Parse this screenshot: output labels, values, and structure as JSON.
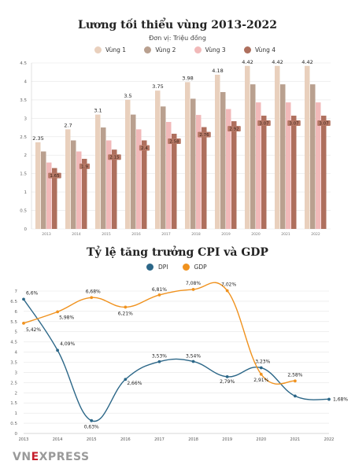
{
  "chart1": {
    "title": "Lương tối thiểu vùng 2013-2022",
    "subtitle": "Đơn vị: Triệu đồng"
  },
  "chart2": {
    "title": "Tỷ lệ tăng trưởng CPI và GDP"
  },
  "logo": {
    "prefix": "VN",
    "e": "E",
    "suffix": "XPRESS"
  },
  "chart_data": [
    {
      "type": "bar",
      "title": "Lương tối thiểu vùng 2013-2022",
      "subtitle": "Đơn vị: Triệu đồng",
      "categories": [
        "2013",
        "2014",
        "2015",
        "2016",
        "2017",
        "2018",
        "2019",
        "2020",
        "2021",
        "2022"
      ],
      "series": [
        {
          "name": "Vùng 1",
          "color": "#e9d0bd",
          "values": [
            2.35,
            2.7,
            3.1,
            3.5,
            3.75,
            3.98,
            4.18,
            4.42,
            4.42,
            4.42
          ]
        },
        {
          "name": "Vùng 2",
          "color": "#b9a08f",
          "values": [
            2.1,
            2.4,
            2.75,
            3.1,
            3.32,
            3.53,
            3.71,
            3.92,
            3.92,
            3.92
          ]
        },
        {
          "name": "Vùng 3",
          "color": "#f1b9b9",
          "values": [
            1.8,
            2.1,
            2.4,
            2.7,
            2.9,
            3.09,
            3.25,
            3.43,
            3.43,
            3.43
          ]
        },
        {
          "name": "Vùng 4",
          "color": "#ae6f5d",
          "values": [
            1.65,
            1.9,
            2.15,
            2.4,
            2.58,
            2.76,
            2.92,
            3.07,
            3.07,
            3.07
          ]
        }
      ],
      "data_labels": [
        [
          "2.35",
          "2.7",
          "3.1",
          "3.5",
          "3.75",
          "3.98",
          "4.18",
          "4.42",
          "4.42",
          "4.42"
        ],
        [
          "",
          "",
          "",
          "",
          "",
          "",
          "",
          "",
          "",
          ""
        ],
        [
          "",
          "",
          "",
          "",
          "",
          "",
          "",
          "",
          "",
          ""
        ],
        [
          "1.65",
          "1.9",
          "2.15",
          "2.4",
          "2.58",
          "2.76",
          "2.92",
          "3.07",
          "3.07",
          "3.07"
        ]
      ],
      "yticks": [
        "0",
        "0.5",
        "1",
        "1.5",
        "2",
        "2.5",
        "3",
        "3.5",
        "4",
        "4.5"
      ],
      "ylim": [
        0,
        4.5
      ],
      "grid": true,
      "legend": "top"
    },
    {
      "type": "line",
      "title": "Tỷ lệ tăng trưởng CPI và GDP",
      "categories": [
        "2013",
        "2014",
        "2015",
        "2016",
        "2017",
        "2018",
        "2019",
        "2020",
        "2021",
        "2022"
      ],
      "series": [
        {
          "name": "DPI",
          "color": "#2c6788",
          "values": [
            6.6,
            4.09,
            0.63,
            2.66,
            3.53,
            3.54,
            2.79,
            3.23,
            1.84,
            1.68
          ],
          "labels": [
            "6,6%",
            "4,09%",
            "0,63%",
            "2,66%",
            "3,53%",
            "3,54%",
            "2,79%",
            "3,23%",
            "",
            "1,68%"
          ]
        },
        {
          "name": "GDP",
          "color": "#f0921e",
          "values": [
            5.42,
            5.98,
            6.68,
            6.21,
            6.81,
            7.08,
            7.02,
            2.91,
            2.58,
            null
          ],
          "labels": [
            "5,42%",
            "5,98%",
            "6,68%",
            "6,21%",
            "6,81%",
            "7,08%",
            "7,02%",
            "2,91%",
            "2,58%",
            ""
          ]
        }
      ],
      "yticks": [
        "0",
        "0.5",
        "1",
        "1.5",
        "2",
        "2.5",
        "3",
        "3.5",
        "4",
        "4.5",
        "5",
        "5.5",
        "6",
        "6.5",
        "7"
      ],
      "ylim": [
        0,
        7
      ],
      "grid": true,
      "legend": "top"
    }
  ]
}
